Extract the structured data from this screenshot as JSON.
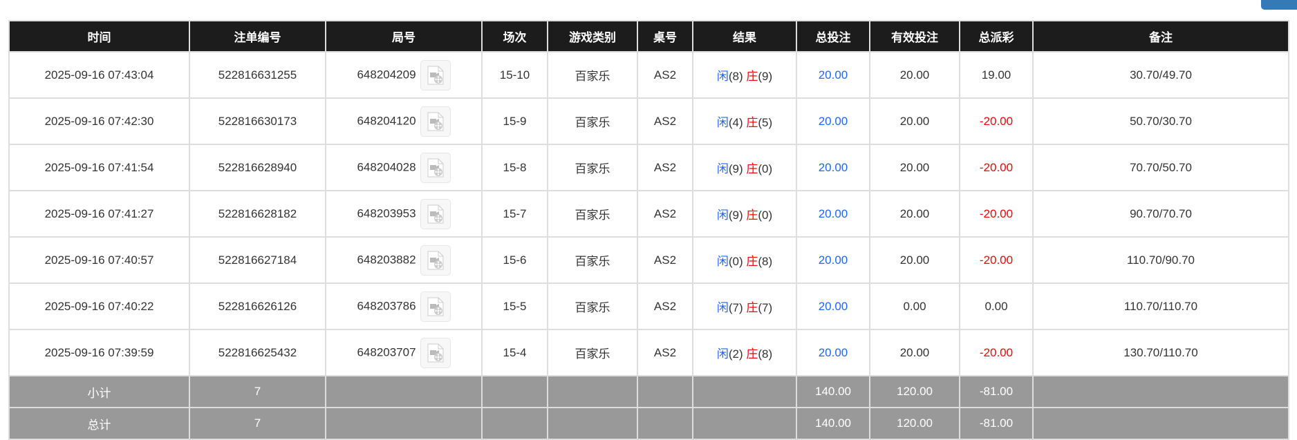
{
  "headers": [
    "时间",
    "注单编号",
    "局号",
    "场次",
    "游戏类别",
    "桌号",
    "结果",
    "总投注",
    "有效投注",
    "总派彩",
    "备注"
  ],
  "rows": [
    {
      "time": "2025-09-16 07:43:04",
      "bet_id": "522816631255",
      "round": "648204209",
      "shoe": "15-10",
      "game": "百家乐",
      "table": "AS2",
      "player_label": "闲",
      "player": "(8)",
      "banker_label": "庄",
      "banker": "(9)",
      "total_bet": "20.00",
      "valid_bet": "20.00",
      "payout": "19.00",
      "payout_negative": false,
      "note": "30.70/49.70"
    },
    {
      "time": "2025-09-16 07:42:30",
      "bet_id": "522816630173",
      "round": "648204120",
      "shoe": "15-9",
      "game": "百家乐",
      "table": "AS2",
      "player_label": "闲",
      "player": "(4)",
      "banker_label": "庄",
      "banker": "(5)",
      "total_bet": "20.00",
      "valid_bet": "20.00",
      "payout": "-20.00",
      "payout_negative": true,
      "note": "50.70/30.70"
    },
    {
      "time": "2025-09-16 07:41:54",
      "bet_id": "522816628940",
      "round": "648204028",
      "shoe": "15-8",
      "game": "百家乐",
      "table": "AS2",
      "player_label": "闲",
      "player": "(9)",
      "banker_label": "庄",
      "banker": "(0)",
      "total_bet": "20.00",
      "valid_bet": "20.00",
      "payout": "-20.00",
      "payout_negative": true,
      "note": "70.70/50.70"
    },
    {
      "time": "2025-09-16 07:41:27",
      "bet_id": "522816628182",
      "round": "648203953",
      "shoe": "15-7",
      "game": "百家乐",
      "table": "AS2",
      "player_label": "闲",
      "player": "(9)",
      "banker_label": "庄",
      "banker": "(0)",
      "total_bet": "20.00",
      "valid_bet": "20.00",
      "payout": "-20.00",
      "payout_negative": true,
      "note": "90.70/70.70"
    },
    {
      "time": "2025-09-16 07:40:57",
      "bet_id": "522816627184",
      "round": "648203882",
      "shoe": "15-6",
      "game": "百家乐",
      "table": "AS2",
      "player_label": "闲",
      "player": "(0)",
      "banker_label": "庄",
      "banker": "(8)",
      "total_bet": "20.00",
      "valid_bet": "20.00",
      "payout": "-20.00",
      "payout_negative": true,
      "note": "110.70/90.70"
    },
    {
      "time": "2025-09-16 07:40:22",
      "bet_id": "522816626126",
      "round": "648203786",
      "shoe": "15-5",
      "game": "百家乐",
      "table": "AS2",
      "player_label": "闲",
      "player": "(7)",
      "banker_label": "庄",
      "banker": "(7)",
      "total_bet": "20.00",
      "valid_bet": "0.00",
      "payout": "0.00",
      "payout_negative": false,
      "note": "110.70/110.70"
    },
    {
      "time": "2025-09-16 07:39:59",
      "bet_id": "522816625432",
      "round": "648203707",
      "shoe": "15-4",
      "game": "百家乐",
      "table": "AS2",
      "player_label": "闲",
      "player": "(2)",
      "banker_label": "庄",
      "banker": "(8)",
      "total_bet": "20.00",
      "valid_bet": "20.00",
      "payout": "-20.00",
      "payout_negative": true,
      "note": "130.70/110.70"
    }
  ],
  "subtotal": {
    "label": "小计",
    "count": "7",
    "total_bet": "140.00",
    "valid_bet": "120.00",
    "payout": "-81.00"
  },
  "total": {
    "label": "总计",
    "count": "7",
    "total_bet": "140.00",
    "valid_bet": "120.00",
    "payout": "-81.00"
  },
  "colors": {
    "header_bg": "#1c1c1c",
    "player": "#1a66ff",
    "banker": "#ff0000",
    "summary_bg": "#999999",
    "top_button": "#337ab7"
  },
  "icons": {
    "replay": "video-replay-icon"
  }
}
